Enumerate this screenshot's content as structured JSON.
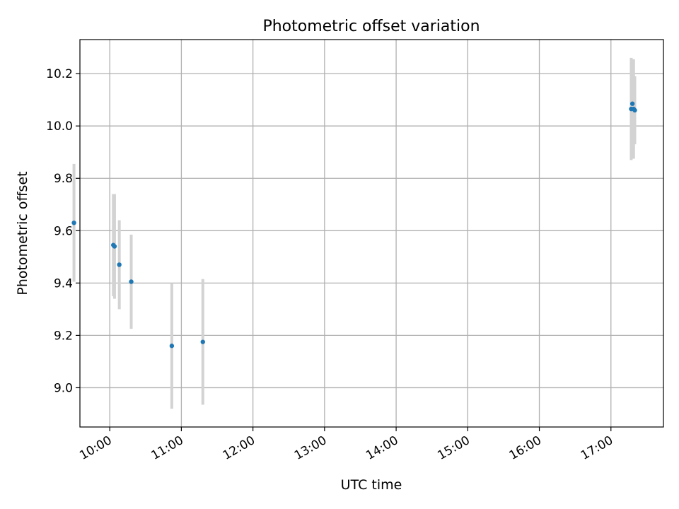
{
  "chart_data": {
    "type": "scatter",
    "title": "Photometric offset variation",
    "xlabel": "UTC time",
    "ylabel": "Photometric offset",
    "grid": true,
    "legend": "none",
    "xlim": [
      "09:35",
      "17:44"
    ],
    "ylim": [
      8.85,
      10.33
    ],
    "x_ticks": [
      "10:00",
      "11:00",
      "12:00",
      "13:00",
      "14:00",
      "15:00",
      "16:00",
      "17:00"
    ],
    "y_ticks": [
      "9.0",
      "9.2",
      "9.4",
      "9.6",
      "9.8",
      "10.0",
      "10.2"
    ],
    "colors": {
      "point": "#1f77b4",
      "errorbar": "#d3d3d3",
      "grid": "#b0b0b0"
    },
    "points": [
      {
        "x": "09:30",
        "y": 9.63,
        "err": 0.225
      },
      {
        "x": "10:03",
        "y": 9.545,
        "err": 0.195
      },
      {
        "x": "10:04",
        "y": 9.54,
        "err": 0.2
      },
      {
        "x": "10:08",
        "y": 9.47,
        "err": 0.17
      },
      {
        "x": "10:18",
        "y": 9.405,
        "err": 0.18
      },
      {
        "x": "10:52",
        "y": 9.16,
        "err": 0.24
      },
      {
        "x": "11:18",
        "y": 9.175,
        "err": 0.24
      },
      {
        "x": "17:17",
        "y": 10.065,
        "err": 0.195
      },
      {
        "x": "17:18",
        "y": 10.085,
        "err": 0.17
      },
      {
        "x": "17:19",
        "y": 10.065,
        "err": 0.19
      },
      {
        "x": "17:20",
        "y": 10.06,
        "err": 0.13
      }
    ]
  }
}
